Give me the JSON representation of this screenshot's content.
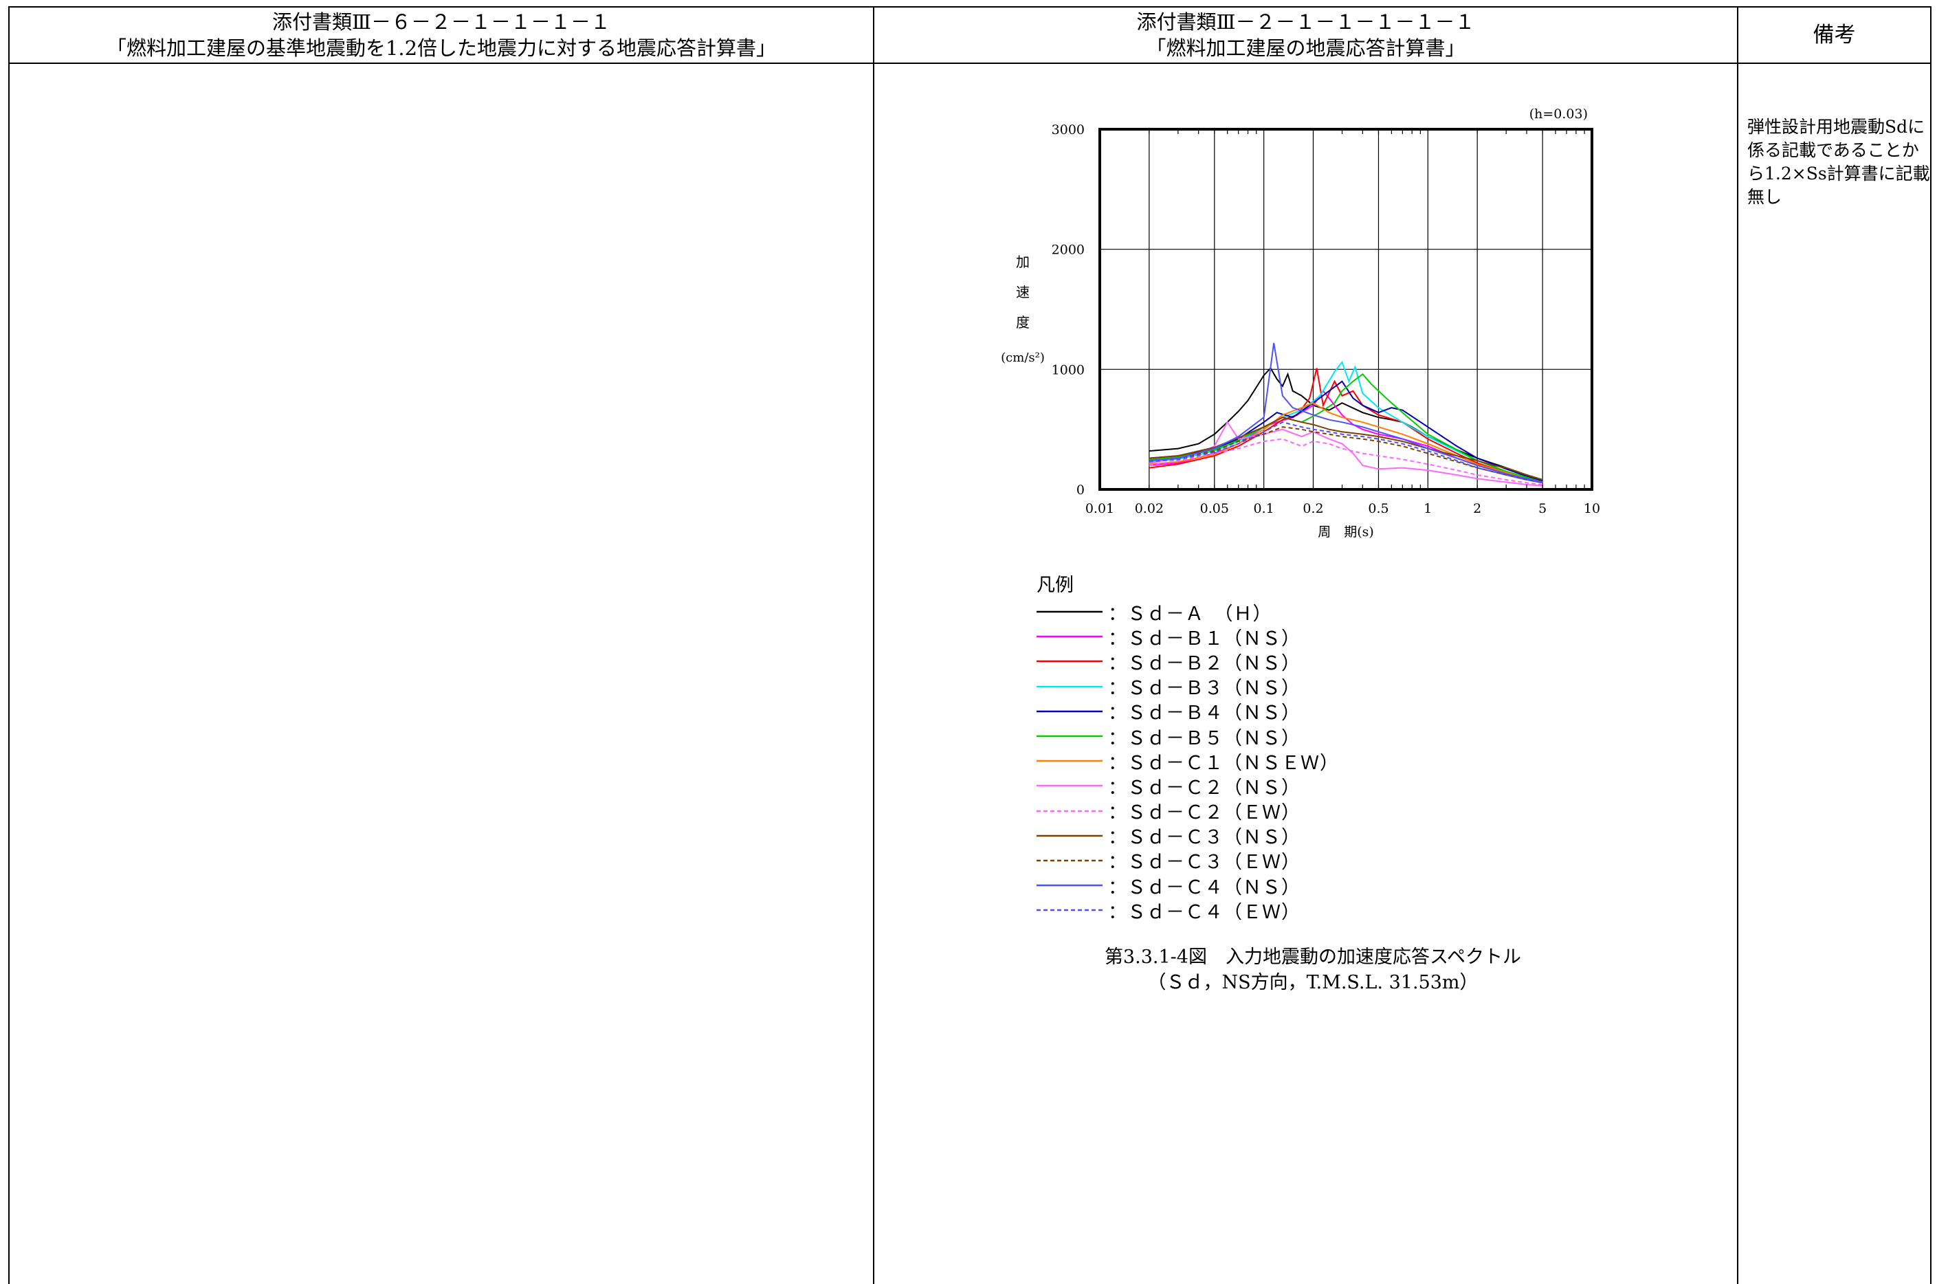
{
  "header": {
    "left_line1": "添付書類Ⅲ－６－２－１－１－１－１",
    "left_line2": "「燃料加工建屋の基準地震動を1.2倍した地震力に対する地震応答計算書」",
    "mid_line1": "添付書類Ⅲ－２－１－１－１－１－１",
    "mid_line2": "「燃料加工建屋の地震応答計算書」",
    "right": "備考"
  },
  "note": "弾性設計用地震動Sdに係る記載であることから1.2×Ss計算書に記載無し",
  "chart_data": {
    "type": "line",
    "damping_label": "(h=0.03)",
    "ylabel_chars": [
      "加",
      "速",
      "度"
    ],
    "yunit": "(cm/s²)",
    "xlabel": "周　期(s)",
    "x_scale": "log",
    "xlim": [
      0.01,
      10
    ],
    "ylim": [
      0,
      3000
    ],
    "x_ticks": [
      "0.01",
      "0.02",
      "0.05",
      "0.1",
      "0.2",
      "0.5",
      "1",
      "2",
      "5",
      "10"
    ],
    "x_tick_values": [
      0.01,
      0.02,
      0.05,
      0.1,
      0.2,
      0.5,
      1,
      2,
      5,
      10
    ],
    "y_ticks": [
      "0",
      "1000",
      "2000",
      "3000"
    ],
    "y_tick_values": [
      0,
      1000,
      2000,
      3000
    ],
    "grid": true,
    "series": [
      {
        "name": "：Ｓｄ－Ａ　（Ｈ）",
        "color": "#000000",
        "dash": false,
        "x": [
          0.02,
          0.03,
          0.04,
          0.05,
          0.06,
          0.07,
          0.08,
          0.09,
          0.1,
          0.11,
          0.12,
          0.13,
          0.14,
          0.15,
          0.17,
          0.2,
          0.25,
          0.3,
          0.4,
          0.5,
          0.6,
          0.7,
          0.8,
          1,
          1.5,
          2,
          3,
          4,
          5
        ],
        "y": [
          320,
          340,
          380,
          460,
          560,
          650,
          740,
          850,
          950,
          1010,
          920,
          860,
          960,
          820,
          780,
          700,
          660,
          720,
          640,
          600,
          580,
          560,
          520,
          440,
          330,
          260,
          180,
          120,
          80
        ]
      },
      {
        "name": "：Ｓｄ－Ｂ１（ＮＳ）",
        "color": "#ff00ff",
        "dash": false,
        "x": [
          0.02,
          0.03,
          0.05,
          0.07,
          0.1,
          0.12,
          0.15,
          0.2,
          0.23,
          0.25,
          0.3,
          0.35,
          0.4,
          0.5,
          0.7,
          1,
          1.5,
          2,
          3,
          4,
          5
        ],
        "y": [
          200,
          220,
          300,
          380,
          520,
          560,
          600,
          700,
          820,
          760,
          620,
          540,
          500,
          460,
          420,
          360,
          260,
          200,
          130,
          90,
          60
        ]
      },
      {
        "name": "：Ｓｄ－Ｂ２（ＮＳ）",
        "color": "#ff0000",
        "dash": false,
        "x": [
          0.02,
          0.03,
          0.05,
          0.07,
          0.1,
          0.13,
          0.16,
          0.19,
          0.21,
          0.23,
          0.27,
          0.3,
          0.35,
          0.4,
          0.5,
          0.7,
          1,
          1.5,
          2,
          3,
          4,
          5
        ],
        "y": [
          180,
          210,
          280,
          360,
          480,
          580,
          620,
          760,
          1010,
          700,
          900,
          780,
          820,
          700,
          620,
          560,
          420,
          300,
          220,
          140,
          90,
          60
        ]
      },
      {
        "name": "：Ｓｄ－Ｂ３（ＮＳ）",
        "color": "#00e5ff",
        "dash": false,
        "x": [
          0.02,
          0.03,
          0.05,
          0.07,
          0.1,
          0.13,
          0.17,
          0.22,
          0.27,
          0.3,
          0.33,
          0.36,
          0.4,
          0.5,
          0.7,
          1,
          1.5,
          2,
          3,
          4,
          5
        ],
        "y": [
          230,
          250,
          320,
          400,
          520,
          600,
          660,
          780,
          980,
          1060,
          900,
          1020,
          800,
          680,
          560,
          440,
          320,
          240,
          150,
          100,
          70
        ]
      },
      {
        "name": "：Ｓｄ－Ｂ４（ＮＳ）",
        "color": "#0000b0",
        "dash": false,
        "x": [
          0.02,
          0.03,
          0.05,
          0.07,
          0.1,
          0.12,
          0.15,
          0.2,
          0.25,
          0.3,
          0.35,
          0.4,
          0.5,
          0.6,
          0.7,
          1,
          1.5,
          2,
          3,
          4,
          5
        ],
        "y": [
          260,
          280,
          340,
          420,
          560,
          640,
          600,
          720,
          820,
          900,
          760,
          700,
          640,
          680,
          660,
          520,
          360,
          260,
          170,
          110,
          70
        ]
      },
      {
        "name": "：Ｓｄ－Ｂ５（ＮＳ）",
        "color": "#00cc00",
        "dash": false,
        "x": [
          0.02,
          0.03,
          0.05,
          0.07,
          0.1,
          0.13,
          0.17,
          0.22,
          0.27,
          0.3,
          0.35,
          0.4,
          0.45,
          0.5,
          0.6,
          0.7,
          1,
          1.5,
          2,
          3,
          4,
          5
        ],
        "y": [
          250,
          270,
          330,
          410,
          520,
          600,
          560,
          640,
          720,
          820,
          900,
          960,
          880,
          820,
          720,
          640,
          460,
          330,
          240,
          150,
          100,
          60
        ]
      },
      {
        "name": "：Ｓｄ－Ｃ１（ＮＳＥＷ）",
        "color": "#ff8000",
        "dash": false,
        "x": [
          0.02,
          0.03,
          0.05,
          0.07,
          0.1,
          0.13,
          0.17,
          0.2,
          0.25,
          0.3,
          0.4,
          0.5,
          0.7,
          1,
          1.5,
          2,
          3,
          4,
          5
        ],
        "y": [
          210,
          230,
          290,
          380,
          500,
          620,
          680,
          720,
          640,
          600,
          560,
          520,
          460,
          380,
          280,
          210,
          140,
          90,
          60
        ]
      },
      {
        "name": "：Ｓｄ－Ｃ２（ＮＳ）",
        "color": "#ff66ff",
        "dash": false,
        "x": [
          0.02,
          0.03,
          0.04,
          0.05,
          0.06,
          0.07,
          0.1,
          0.13,
          0.17,
          0.2,
          0.25,
          0.3,
          0.35,
          0.4,
          0.5,
          0.7,
          1,
          1.5,
          2,
          3,
          4,
          5
        ],
        "y": [
          220,
          260,
          300,
          360,
          560,
          420,
          460,
          500,
          440,
          480,
          420,
          380,
          300,
          200,
          170,
          180,
          160,
          120,
          90,
          60,
          40,
          30
        ]
      },
      {
        "name": "：Ｓｄ－Ｃ２（ＥＷ）",
        "color": "#ff66ff",
        "dash": true,
        "x": [
          0.02,
          0.03,
          0.05,
          0.07,
          0.1,
          0.13,
          0.17,
          0.2,
          0.25,
          0.3,
          0.4,
          0.5,
          0.7,
          1,
          1.5,
          2,
          3,
          4,
          5
        ],
        "y": [
          200,
          240,
          300,
          340,
          400,
          420,
          360,
          400,
          380,
          340,
          300,
          280,
          250,
          210,
          160,
          120,
          80,
          55,
          40
        ]
      },
      {
        "name": "：Ｓｄ－Ｃ３（ＮＳ）",
        "color": "#804000",
        "dash": false,
        "x": [
          0.02,
          0.03,
          0.05,
          0.07,
          0.1,
          0.13,
          0.17,
          0.2,
          0.25,
          0.3,
          0.4,
          0.5,
          0.7,
          1,
          1.5,
          2,
          2.5,
          3,
          4,
          5
        ],
        "y": [
          260,
          280,
          350,
          430,
          520,
          600,
          560,
          540,
          500,
          480,
          460,
          440,
          400,
          340,
          280,
          240,
          200,
          180,
          120,
          80
        ]
      },
      {
        "name": "：Ｓｄ－Ｃ３（ＥＷ）",
        "color": "#804000",
        "dash": true,
        "x": [
          0.02,
          0.03,
          0.05,
          0.07,
          0.1,
          0.13,
          0.17,
          0.2,
          0.25,
          0.3,
          0.4,
          0.5,
          0.7,
          1,
          1.5,
          2,
          3,
          4,
          5
        ],
        "y": [
          240,
          260,
          320,
          400,
          460,
          520,
          500,
          480,
          460,
          440,
          420,
          400,
          360,
          300,
          230,
          180,
          120,
          80,
          55
        ]
      },
      {
        "name": "：Ｓｄ－Ｃ４（ＮＳ）",
        "color": "#5050ff",
        "dash": false,
        "x": [
          0.02,
          0.03,
          0.05,
          0.07,
          0.1,
          0.115,
          0.13,
          0.15,
          0.2,
          0.25,
          0.3,
          0.4,
          0.5,
          0.7,
          1,
          1.5,
          2,
          3,
          4,
          5
        ],
        "y": [
          240,
          260,
          340,
          440,
          600,
          1220,
          780,
          680,
          620,
          580,
          560,
          520,
          480,
          420,
          340,
          260,
          200,
          130,
          90,
          60
        ]
      },
      {
        "name": "：Ｓｄ－Ｃ４（ＥＷ）",
        "color": "#5050ff",
        "dash": true,
        "x": [
          0.02,
          0.03,
          0.05,
          0.07,
          0.1,
          0.13,
          0.17,
          0.2,
          0.25,
          0.3,
          0.4,
          0.5,
          0.7,
          1,
          1.5,
          2,
          3,
          4,
          5
        ],
        "y": [
          230,
          250,
          310,
          380,
          480,
          560,
          520,
          500,
          480,
          460,
          440,
          420,
          380,
          320,
          240,
          180,
          120,
          80,
          55
        ]
      }
    ]
  },
  "legend_title": "凡例",
  "caption": {
    "line1": "第3.3.1-4図　入力地震動の加速度応答スペクトル",
    "line2": "（Ｓｄ，NS方向，T.M.S.L. 31.53m）"
  }
}
